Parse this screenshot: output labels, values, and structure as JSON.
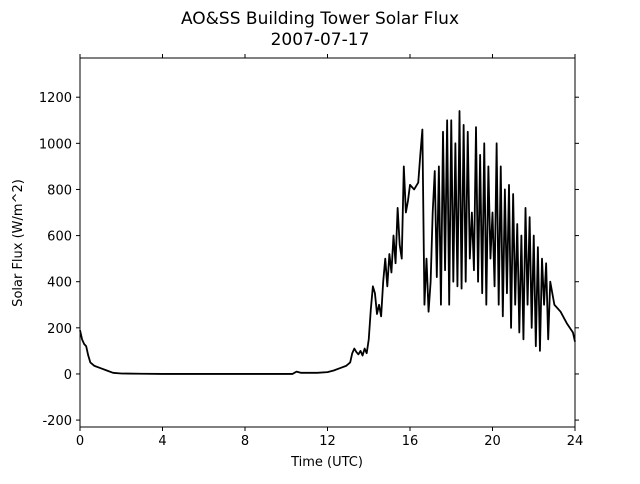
{
  "chart_data": {
    "type": "line",
    "title": "AO&SS Building Tower Solar Flux",
    "subtitle": "2007-07-17",
    "x_label": "Time (UTC)",
    "y_label": "Solar Flux (W/m^2)",
    "color": "#000000",
    "xlim": [
      0,
      24
    ],
    "xticks": [
      0,
      4,
      8,
      12,
      16,
      20,
      24
    ],
    "ylim": [
      -230,
      1370
    ],
    "yticks": [
      -200,
      0,
      200,
      400,
      600,
      800,
      1000,
      1200
    ],
    "x": [
      0,
      0.1,
      0.2,
      0.3,
      0.4,
      0.5,
      0.7,
      1,
      1.3,
      1.6,
      2,
      3,
      4,
      6,
      8,
      10.3,
      10.5,
      10.7,
      11,
      11.5,
      12,
      12.3,
      12.6,
      12.9,
      13.1,
      13.2,
      13.3,
      13.4,
      13.5,
      13.6,
      13.7,
      13.8,
      13.9,
      14,
      14.1,
      14.2,
      14.3,
      14.4,
      14.5,
      14.6,
      14.7,
      14.8,
      14.9,
      15,
      15.1,
      15.2,
      15.3,
      15.4,
      15.5,
      15.6,
      15.7,
      15.8,
      15.9,
      16,
      16.2,
      16.4,
      16.5,
      16.6,
      16.7,
      16.8,
      16.9,
      17,
      17.1,
      17.2,
      17.3,
      17.4,
      17.5,
      17.6,
      17.7,
      17.8,
      17.9,
      18,
      18.1,
      18.2,
      18.3,
      18.4,
      18.5,
      18.6,
      18.7,
      18.8,
      18.9,
      19,
      19.1,
      19.2,
      19.3,
      19.4,
      19.5,
      19.6,
      19.7,
      19.8,
      19.9,
      20,
      20.1,
      20.2,
      20.3,
      20.4,
      20.5,
      20.6,
      20.7,
      20.8,
      20.9,
      21,
      21.1,
      21.2,
      21.3,
      21.4,
      21.5,
      21.6,
      21.7,
      21.8,
      21.9,
      22,
      22.1,
      22.2,
      22.3,
      22.4,
      22.5,
      22.6,
      22.7,
      22.8,
      22.9,
      23,
      23.3,
      23.6,
      23.9,
      24
    ],
    "values": [
      190,
      150,
      130,
      120,
      80,
      50,
      35,
      25,
      15,
      5,
      2,
      1,
      0,
      0,
      0,
      0,
      10,
      5,
      5,
      5,
      8,
      15,
      25,
      35,
      50,
      90,
      110,
      95,
      85,
      100,
      80,
      110,
      90,
      150,
      280,
      380,
      350,
      260,
      300,
      250,
      400,
      500,
      380,
      520,
      440,
      600,
      480,
      720,
      560,
      500,
      900,
      700,
      750,
      820,
      800,
      830,
      950,
      1060,
      300,
      500,
      270,
      400,
      700,
      880,
      420,
      900,
      300,
      1050,
      450,
      1100,
      300,
      1100,
      400,
      1000,
      380,
      1140,
      370,
      1080,
      400,
      1050,
      500,
      700,
      450,
      1070,
      400,
      950,
      350,
      1000,
      300,
      900,
      500,
      700,
      380,
      1000,
      300,
      900,
      250,
      800,
      350,
      820,
      200,
      780,
      300,
      650,
      180,
      600,
      150,
      720,
      300,
      680,
      200,
      600,
      120,
      550,
      100,
      500,
      300,
      480,
      150,
      400,
      350,
      300,
      270,
      220,
      180,
      140
    ]
  }
}
